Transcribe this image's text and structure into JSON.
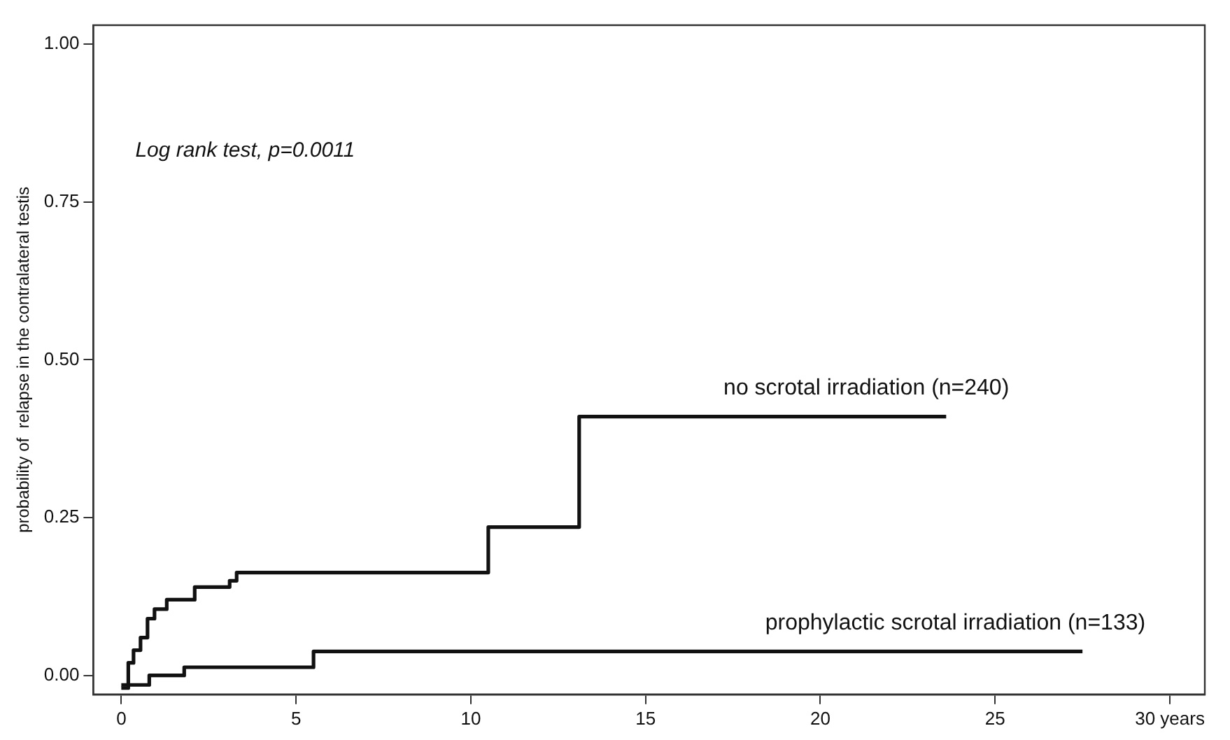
{
  "chart_data": {
    "type": "step",
    "xlabel": null,
    "ylabel": "probability of  relapse in the contralateral testis",
    "xlim": [
      -0.8,
      31
    ],
    "ylim": [
      -0.03,
      1.03
    ],
    "xticks": [
      0,
      5,
      10,
      15,
      20,
      25,
      {
        "value": 30,
        "label": "30 years"
      }
    ],
    "yticks": [
      {
        "value": 0,
        "label": "0.00"
      },
      {
        "value": 0.25,
        "label": "0.25"
      },
      {
        "value": 0.5,
        "label": "0.50"
      },
      {
        "value": 0.75,
        "label": "0.75"
      },
      {
        "value": 1,
        "label": "1.00"
      }
    ],
    "grid": false,
    "legend": false,
    "marker": "none",
    "line_style": "solid",
    "annotations": [
      "Log rank test, p=0.0011"
    ],
    "series": [
      {
        "name": "no scrotal irradiation (n=240)",
        "color": "#111111",
        "x": [
          0,
          0.2,
          0.35,
          0.55,
          0.75,
          0.95,
          1.3,
          2.1,
          3.1,
          3.3,
          10.5,
          13.1,
          23.6
        ],
        "values": [
          -0.02,
          0.02,
          0.04,
          0.06,
          0.09,
          0.105,
          0.12,
          0.14,
          0.15,
          0.163,
          0.235,
          0.41,
          0.41
        ]
      },
      {
        "name": "prophylactic scrotal irradiation (n=133)",
        "color": "#111111",
        "x": [
          0,
          0.8,
          1.8,
          5.5,
          27.5
        ],
        "values": [
          -0.015,
          0,
          0.013,
          0.038,
          0.038
        ]
      }
    ]
  }
}
